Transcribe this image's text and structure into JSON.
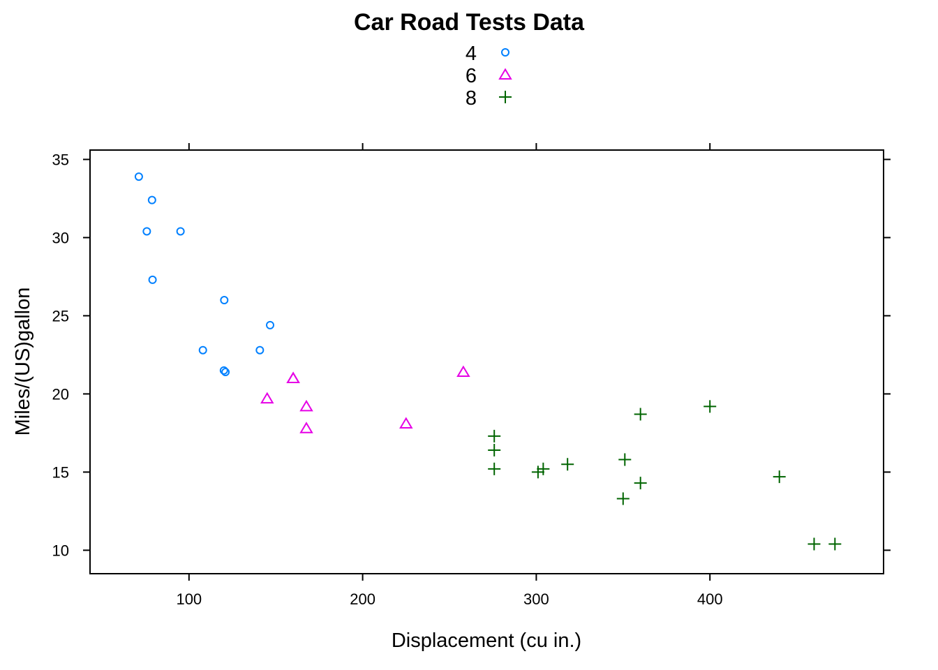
{
  "chart_data": {
    "type": "scatter",
    "title": "Car Road Tests Data",
    "xlabel": "Displacement (cu in.)",
    "ylabel": "Miles/(US)gallon",
    "xlim": [
      43,
      500
    ],
    "ylim": [
      8.5,
      35.6
    ],
    "x_ticks": [
      100,
      200,
      300,
      400
    ],
    "y_ticks": [
      10,
      15,
      20,
      25,
      30,
      35
    ],
    "grid": false,
    "legend_position": "top-center",
    "series": [
      {
        "name": "4",
        "marker": "circle",
        "color": "#0080ff",
        "points": [
          {
            "x": 71.1,
            "y": 33.9
          },
          {
            "x": 78.7,
            "y": 32.4
          },
          {
            "x": 75.7,
            "y": 30.4
          },
          {
            "x": 95.1,
            "y": 30.4
          },
          {
            "x": 79.0,
            "y": 27.3
          },
          {
            "x": 120.3,
            "y": 26.0
          },
          {
            "x": 146.7,
            "y": 24.4
          },
          {
            "x": 108.0,
            "y": 22.8
          },
          {
            "x": 140.8,
            "y": 22.8
          },
          {
            "x": 120.1,
            "y": 21.5
          },
          {
            "x": 121.0,
            "y": 21.4
          }
        ]
      },
      {
        "name": "6",
        "marker": "triangle",
        "color": "#e600e6",
        "points": [
          {
            "x": 258.0,
            "y": 21.4
          },
          {
            "x": 160.0,
            "y": 21.0
          },
          {
            "x": 160.0,
            "y": 21.0
          },
          {
            "x": 145.0,
            "y": 19.7
          },
          {
            "x": 167.6,
            "y": 19.2
          },
          {
            "x": 225.0,
            "y": 18.1
          },
          {
            "x": 167.6,
            "y": 17.8
          }
        ]
      },
      {
        "name": "8",
        "marker": "plus",
        "color": "#006400",
        "points": [
          {
            "x": 400.0,
            "y": 19.2
          },
          {
            "x": 360.0,
            "y": 18.7
          },
          {
            "x": 275.8,
            "y": 17.3
          },
          {
            "x": 275.8,
            "y": 16.4
          },
          {
            "x": 351.0,
            "y": 15.8
          },
          {
            "x": 318.0,
            "y": 15.5
          },
          {
            "x": 304.0,
            "y": 15.2
          },
          {
            "x": 275.8,
            "y": 15.2
          },
          {
            "x": 301.0,
            "y": 15.0
          },
          {
            "x": 440.0,
            "y": 14.7
          },
          {
            "x": 360.0,
            "y": 14.3
          },
          {
            "x": 350.0,
            "y": 13.3
          },
          {
            "x": 460.0,
            "y": 10.4
          },
          {
            "x": 472.0,
            "y": 10.4
          }
        ]
      }
    ]
  }
}
